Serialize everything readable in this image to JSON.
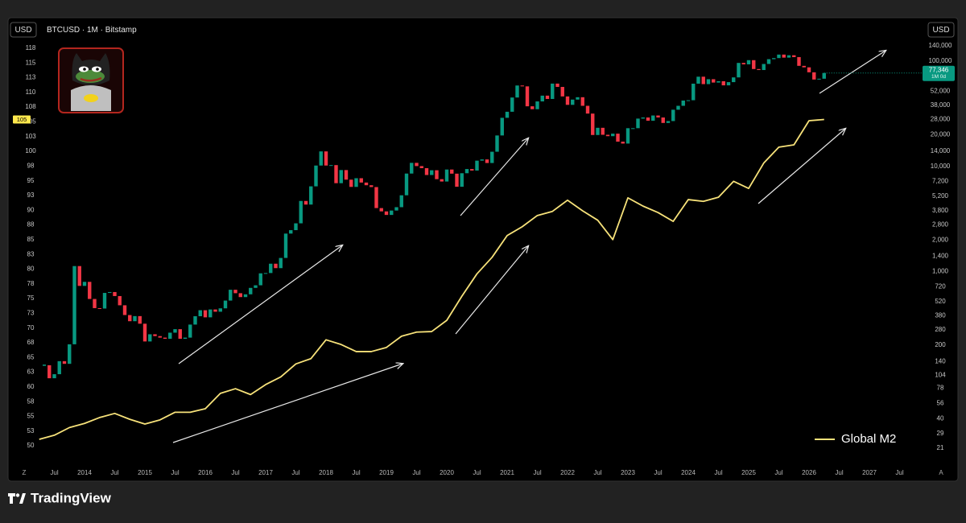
{
  "header": {
    "left_currency": "USD",
    "symbol": "BTCUSD · 1M · Bitstamp",
    "right_currency": "USD"
  },
  "controls": {
    "left": "Z",
    "right": "A"
  },
  "footer": {
    "brand": "TradingView"
  },
  "chart_data": {
    "type": "candlestick",
    "xlim": [
      "2013-01",
      "2027-09"
    ],
    "xticks": [
      {
        "value": "2013-07",
        "label": "Jul"
      },
      {
        "value": "2014-01",
        "label": "2014"
      },
      {
        "value": "2014-07",
        "label": "Jul"
      },
      {
        "value": "2015-01",
        "label": "2015"
      },
      {
        "value": "2015-07",
        "label": "Jul"
      },
      {
        "value": "2016-01",
        "label": "2016"
      },
      {
        "value": "2016-07",
        "label": "Jul"
      },
      {
        "value": "2017-01",
        "label": "2017"
      },
      {
        "value": "2017-07",
        "label": "Jul"
      },
      {
        "value": "2018-01",
        "label": "2018"
      },
      {
        "value": "2018-07",
        "label": "Jul"
      },
      {
        "value": "2019-01",
        "label": "2019"
      },
      {
        "value": "2019-07",
        "label": "Jul"
      },
      {
        "value": "2020-01",
        "label": "2020"
      },
      {
        "value": "2020-07",
        "label": "Jul"
      },
      {
        "value": "2021-01",
        "label": "2021"
      },
      {
        "value": "2021-07",
        "label": "Jul"
      },
      {
        "value": "2022-01",
        "label": "2022"
      },
      {
        "value": "2022-07",
        "label": "Jul"
      },
      {
        "value": "2023-01",
        "label": "2023"
      },
      {
        "value": "2023-07",
        "label": "Jul"
      },
      {
        "value": "2024-01",
        "label": "2024"
      },
      {
        "value": "2024-07",
        "label": "Jul"
      },
      {
        "value": "2025-01",
        "label": "2025"
      },
      {
        "value": "2025-07",
        "label": "Jul"
      },
      {
        "value": "2026-01",
        "label": "2026"
      },
      {
        "value": "2026-07",
        "label": "Jul"
      },
      {
        "value": "2027-01",
        "label": "2027"
      },
      {
        "value": "2027-07",
        "label": "Jul"
      }
    ],
    "ylim": [
      49.6,
      117.9
    ],
    "yticks": [
      50,
      {
        "value": 52.5,
        "label": "53"
      },
      55,
      {
        "value": 57.5,
        "label": "58"
      },
      60,
      {
        "value": 62.5,
        "label": "63"
      },
      65,
      {
        "value": 67.5,
        "label": "68"
      },
      70,
      {
        "value": 72.5,
        "label": "73"
      },
      75,
      {
        "value": 77.5,
        "label": "78"
      },
      80,
      {
        "value": 82.5,
        "label": "83"
      },
      85,
      {
        "value": 87.5,
        "label": "88"
      },
      90,
      {
        "value": 92.5,
        "label": "93"
      },
      95,
      {
        "value": 97.5,
        "label": "98"
      },
      100,
      {
        "value": 102.5,
        "label": "103"
      },
      105,
      {
        "value": 107.5,
        "label": "108"
      },
      110,
      {
        "value": 112.5,
        "label": "113"
      },
      115,
      {
        "value": 117.5,
        "label": "118"
      }
    ],
    "y2lim": [
      21,
      140000
    ],
    "y2log": true,
    "y2ticks": [
      21,
      29,
      40,
      56,
      78,
      104,
      140,
      200,
      280,
      380,
      520,
      720,
      {
        "value": 1000,
        "label": "1,000"
      },
      {
        "value": 1400,
        "label": "1,400"
      },
      {
        "value": 2000,
        "label": "2,000"
      },
      {
        "value": 2800,
        "label": "2,800"
      },
      {
        "value": 3800,
        "label": "3,800"
      },
      {
        "value": 5200,
        "label": "5,200"
      },
      {
        "value": 7200,
        "label": "7,200"
      },
      {
        "value": 10000,
        "label": "10,000"
      },
      {
        "value": 14000,
        "label": "14,000"
      },
      {
        "value": 20000,
        "label": "20,000"
      },
      {
        "value": 28000,
        "label": "28,000"
      },
      {
        "value": 38000,
        "label": "38,000"
      },
      {
        "value": 52000,
        "label": "52,000"
      },
      {
        "value": 100000,
        "label": "100,000"
      },
      {
        "value": 140000,
        "label": "140,000"
      }
    ],
    "grid": false,
    "legend": "bottom-right",
    "series": [
      {
        "name": "BTCUSD",
        "type": "candlestick",
        "axis": "y2",
        "up_color": "#089981",
        "down_color": "#f23645",
        "last_label": "77,346",
        "countdown": "1M 0d",
        "x": [
          "2013-05",
          "2013-06",
          "2013-07",
          "2013-08",
          "2013-09",
          "2013-10",
          "2013-11",
          "2013-12",
          "2014-01",
          "2014-02",
          "2014-03",
          "2014-04",
          "2014-05",
          "2014-06",
          "2014-07",
          "2014-08",
          "2014-09",
          "2014-10",
          "2014-11",
          "2014-12",
          "2015-01",
          "2015-02",
          "2015-03",
          "2015-04",
          "2015-05",
          "2015-06",
          "2015-07",
          "2015-08",
          "2015-09",
          "2015-10",
          "2015-11",
          "2015-12",
          "2016-01",
          "2016-02",
          "2016-03",
          "2016-04",
          "2016-05",
          "2016-06",
          "2016-07",
          "2016-08",
          "2016-09",
          "2016-10",
          "2016-11",
          "2016-12",
          "2017-01",
          "2017-02",
          "2017-03",
          "2017-04",
          "2017-05",
          "2017-06",
          "2017-07",
          "2017-08",
          "2017-09",
          "2017-10",
          "2017-11",
          "2017-12",
          "2018-01",
          "2018-02",
          "2018-03",
          "2018-04",
          "2018-05",
          "2018-06",
          "2018-07",
          "2018-08",
          "2018-09",
          "2018-10",
          "2018-11",
          "2018-12",
          "2019-01",
          "2019-02",
          "2019-03",
          "2019-04",
          "2019-05",
          "2019-06",
          "2019-07",
          "2019-08",
          "2019-09",
          "2019-10",
          "2019-11",
          "2019-12",
          "2020-01",
          "2020-02",
          "2020-03",
          "2020-04",
          "2020-05",
          "2020-06",
          "2020-07",
          "2020-08",
          "2020-09",
          "2020-10",
          "2020-11",
          "2020-12",
          "2021-01",
          "2021-02",
          "2021-03",
          "2021-04",
          "2021-05",
          "2021-06",
          "2021-07",
          "2021-08",
          "2021-09",
          "2021-10",
          "2021-11",
          "2021-12",
          "2022-01",
          "2022-02",
          "2022-03",
          "2022-04",
          "2022-05",
          "2022-06",
          "2022-07",
          "2022-08",
          "2022-09",
          "2022-10",
          "2022-11",
          "2022-12",
          "2023-01",
          "2023-02",
          "2023-03",
          "2023-04",
          "2023-05",
          "2023-06",
          "2023-07",
          "2023-08",
          "2023-09",
          "2023-10",
          "2023-11",
          "2023-12",
          "2024-01",
          "2024-02",
          "2024-03",
          "2024-04",
          "2024-05",
          "2024-06",
          "2024-07",
          "2024-08",
          "2024-09",
          "2024-10",
          "2024-11",
          "2024-12",
          "2025-01",
          "2025-02",
          "2025-03",
          "2025-04",
          "2025-05",
          "2025-06",
          "2025-07",
          "2025-08",
          "2025-09",
          "2025-10",
          "2025-11",
          "2025-12",
          "2026-01",
          "2026-02",
          "2026-03",
          "2026-04"
        ],
        "close": [
          129,
          97,
          106,
          141,
          133,
          204,
          1130,
          732,
          800,
          550,
          450,
          446,
          628,
          640,
          586,
          479,
          387,
          338,
          378,
          320,
          217,
          254,
          244,
          236,
          230,
          263,
          284,
          230,
          236,
          314,
          377,
          430,
          368,
          437,
          416,
          448,
          531,
          673,
          624,
          573,
          609,
          701,
          742,
          964,
          970,
          1190,
          1080,
          1350,
          2300,
          2480,
          2880,
          4700,
          4340,
          6470,
          10200,
          13900,
          10200,
          10300,
          6930,
          9240,
          7490,
          6390,
          7730,
          7030,
          6630,
          6370,
          4020,
          3740,
          3460,
          3810,
          4100,
          5320,
          8560,
          10820,
          10080,
          9630,
          8290,
          9200,
          7570,
          7190,
          9350,
          8540,
          6410,
          8620,
          9450,
          9140,
          11350,
          11660,
          10780,
          13800,
          19700,
          28990,
          33100,
          45200,
          58800,
          57700,
          37300,
          35000,
          41500,
          47100,
          43800,
          61300,
          57000,
          46300,
          38500,
          43200,
          45500,
          37700,
          31800,
          19900,
          23300,
          20000,
          19400,
          20500,
          17200,
          16500,
          23100,
          23100,
          28500,
          29200,
          27200,
          30500,
          29200,
          25900,
          27000,
          34600,
          37700,
          42300,
          42600,
          61200,
          71300,
          60600,
          67500,
          62700,
          64600,
          59000,
          63300,
          70200,
          96400,
          93400,
          102400,
          84300,
          82500,
          94200,
          104600,
          107100,
          115700,
          108200,
          114000,
          109500,
          90400,
          87500,
          78500,
          67000,
          68200,
          77346
        ]
      },
      {
        "name": "Global M2",
        "type": "line",
        "axis": "y",
        "color": "#f7e27a",
        "last_label": "105",
        "x": [
          "2013-04",
          "2013-07",
          "2013-10",
          "2014-01",
          "2014-04",
          "2014-07",
          "2014-10",
          "2015-01",
          "2015-04",
          "2015-07",
          "2015-10",
          "2016-01",
          "2016-04",
          "2016-07",
          "2016-10",
          "2017-01",
          "2017-04",
          "2017-07",
          "2017-10",
          "2018-01",
          "2018-04",
          "2018-07",
          "2018-10",
          "2019-01",
          "2019-04",
          "2019-07",
          "2019-10",
          "2020-01",
          "2020-04",
          "2020-07",
          "2020-10",
          "2021-01",
          "2021-04",
          "2021-07",
          "2021-10",
          "2022-01",
          "2022-04",
          "2022-07",
          "2022-10",
          "2023-01",
          "2023-04",
          "2023-07",
          "2023-10",
          "2024-01",
          "2024-04",
          "2024-07",
          "2024-10",
          "2025-01",
          "2025-04",
          "2025-07",
          "2025-10",
          "2026-01",
          "2026-04"
        ],
        "values": [
          51.1,
          51.8,
          53.1,
          53.8,
          54.8,
          55.5,
          54.5,
          53.7,
          54.4,
          55.7,
          55.7,
          56.3,
          58.9,
          59.7,
          58.7,
          60.4,
          61.7,
          63.9,
          64.8,
          68.0,
          67.2,
          66.0,
          66.0,
          66.7,
          68.6,
          69.3,
          69.4,
          71.3,
          75.4,
          79.2,
          82.0,
          85.7,
          87.2,
          89.1,
          89.8,
          91.7,
          89.9,
          88.3,
          85.0,
          92.1,
          90.7,
          89.6,
          88.1,
          91.8,
          91.5,
          92.2,
          94.9,
          93.7,
          98.0,
          100.7,
          101.1,
          105.2,
          105.4
        ]
      }
    ]
  }
}
